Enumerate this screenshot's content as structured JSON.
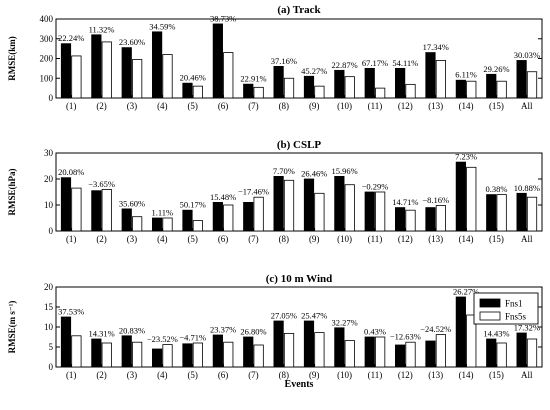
{
  "chart_data": {
    "type": "bar",
    "categories": [
      "(1)",
      "(2)",
      "(3)",
      "(4)",
      "(5)",
      "(6)",
      "(7)",
      "(8)",
      "(9)",
      "(10)",
      "(11)",
      "(12)",
      "(13)",
      "(14)",
      "(15)",
      "All"
    ],
    "xlabel": "Events",
    "legend": {
      "placement": "top-right",
      "entries": [
        "Fns1",
        "Fns5s"
      ]
    },
    "colors": {
      "Fns1": "#000000",
      "Fns5s": "#ffffff"
    },
    "panels": [
      {
        "title": "(a) Track",
        "ylabel": "RMSE(km)",
        "ylim": [
          0,
          400
        ],
        "yticks": [
          0,
          100,
          200,
          300,
          400
        ],
        "series": [
          {
            "name": "Fns1",
            "values": [
              275,
              320,
              255,
              335,
              75,
              375,
              70,
              160,
              110,
              140,
              150,
              150,
              230,
              90,
              120,
              190
            ]
          },
          {
            "name": "Fns5s",
            "values": [
              213,
              284,
              195,
              220,
              60,
              230,
              54,
              100,
              60,
              108,
              50,
              69,
              190,
              85,
              85,
              133
            ]
          }
        ],
        "labels": [
          "22.24%",
          "11.32%",
          "23.60%",
          "34.59%",
          "20.46%",
          "38.73%",
          "22.91%",
          "37.16%",
          "45.27%",
          "22.87%",
          "67.17%",
          "54.11%",
          "17.34%",
          "6.11%",
          "29.26%",
          "30.03%"
        ]
      },
      {
        "title": "(b) CSLP",
        "ylabel": "RMSE(hPa)",
        "ylim": [
          0,
          30
        ],
        "yticks": [
          0,
          10,
          20,
          30
        ],
        "series": [
          {
            "name": "Fns1",
            "values": [
              20.5,
              15.5,
              8.5,
              5.0,
              8.0,
              11.0,
              11.0,
              21.0,
              20.0,
              21.0,
              15.0,
              9.0,
              9.0,
              26.5,
              14.0,
              14.5
            ]
          },
          {
            "name": "Fns5s",
            "values": [
              16.5,
              16.0,
              5.5,
              5.0,
              4.0,
              10.0,
              13.0,
              19.5,
              14.5,
              17.8,
              15.0,
              8.0,
              9.8,
              24.5,
              14.0,
              13.0
            ]
          }
        ],
        "labels": [
          "20.08%",
          "−3.65%",
          "35.60%",
          "1.11%",
          "50.17%",
          "15.48%",
          "−17.46%",
          "7.70%",
          "26.46%",
          "15.96%",
          "−0.29%",
          "14.71%",
          "−8.16%",
          "7.23%",
          "0.38%",
          "10.88%"
        ]
      },
      {
        "title": "(c) 10 m Wind",
        "ylabel": "RMSE(m s⁻¹)",
        "ylim": [
          0,
          20
        ],
        "yticks": [
          0,
          5,
          10,
          15,
          20
        ],
        "series": [
          {
            "name": "Fns1",
            "values": [
              12.5,
              7.0,
              7.8,
              4.5,
              5.8,
              8.0,
              7.5,
              11.5,
              11.5,
              9.8,
              7.5,
              5.5,
              6.5,
              17.5,
              7.0,
              8.5
            ]
          },
          {
            "name": "Fns5s",
            "values": [
              7.8,
              6.0,
              6.2,
              5.6,
              6.0,
              6.2,
              5.5,
              8.4,
              8.6,
              6.6,
              7.5,
              6.2,
              8.1,
              13.0,
              6.0,
              7.0
            ]
          }
        ],
        "labels": [
          "37.53%",
          "14.31%",
          "20.83%",
          "−23.52%",
          "−4.71%",
          "23.37%",
          "26.80%",
          "27.05%",
          "25.47%",
          "32.27%",
          "0.43%",
          "−12.63%",
          "−24.52%",
          "26.27%",
          "14.43%",
          "17.32%"
        ]
      }
    ]
  }
}
